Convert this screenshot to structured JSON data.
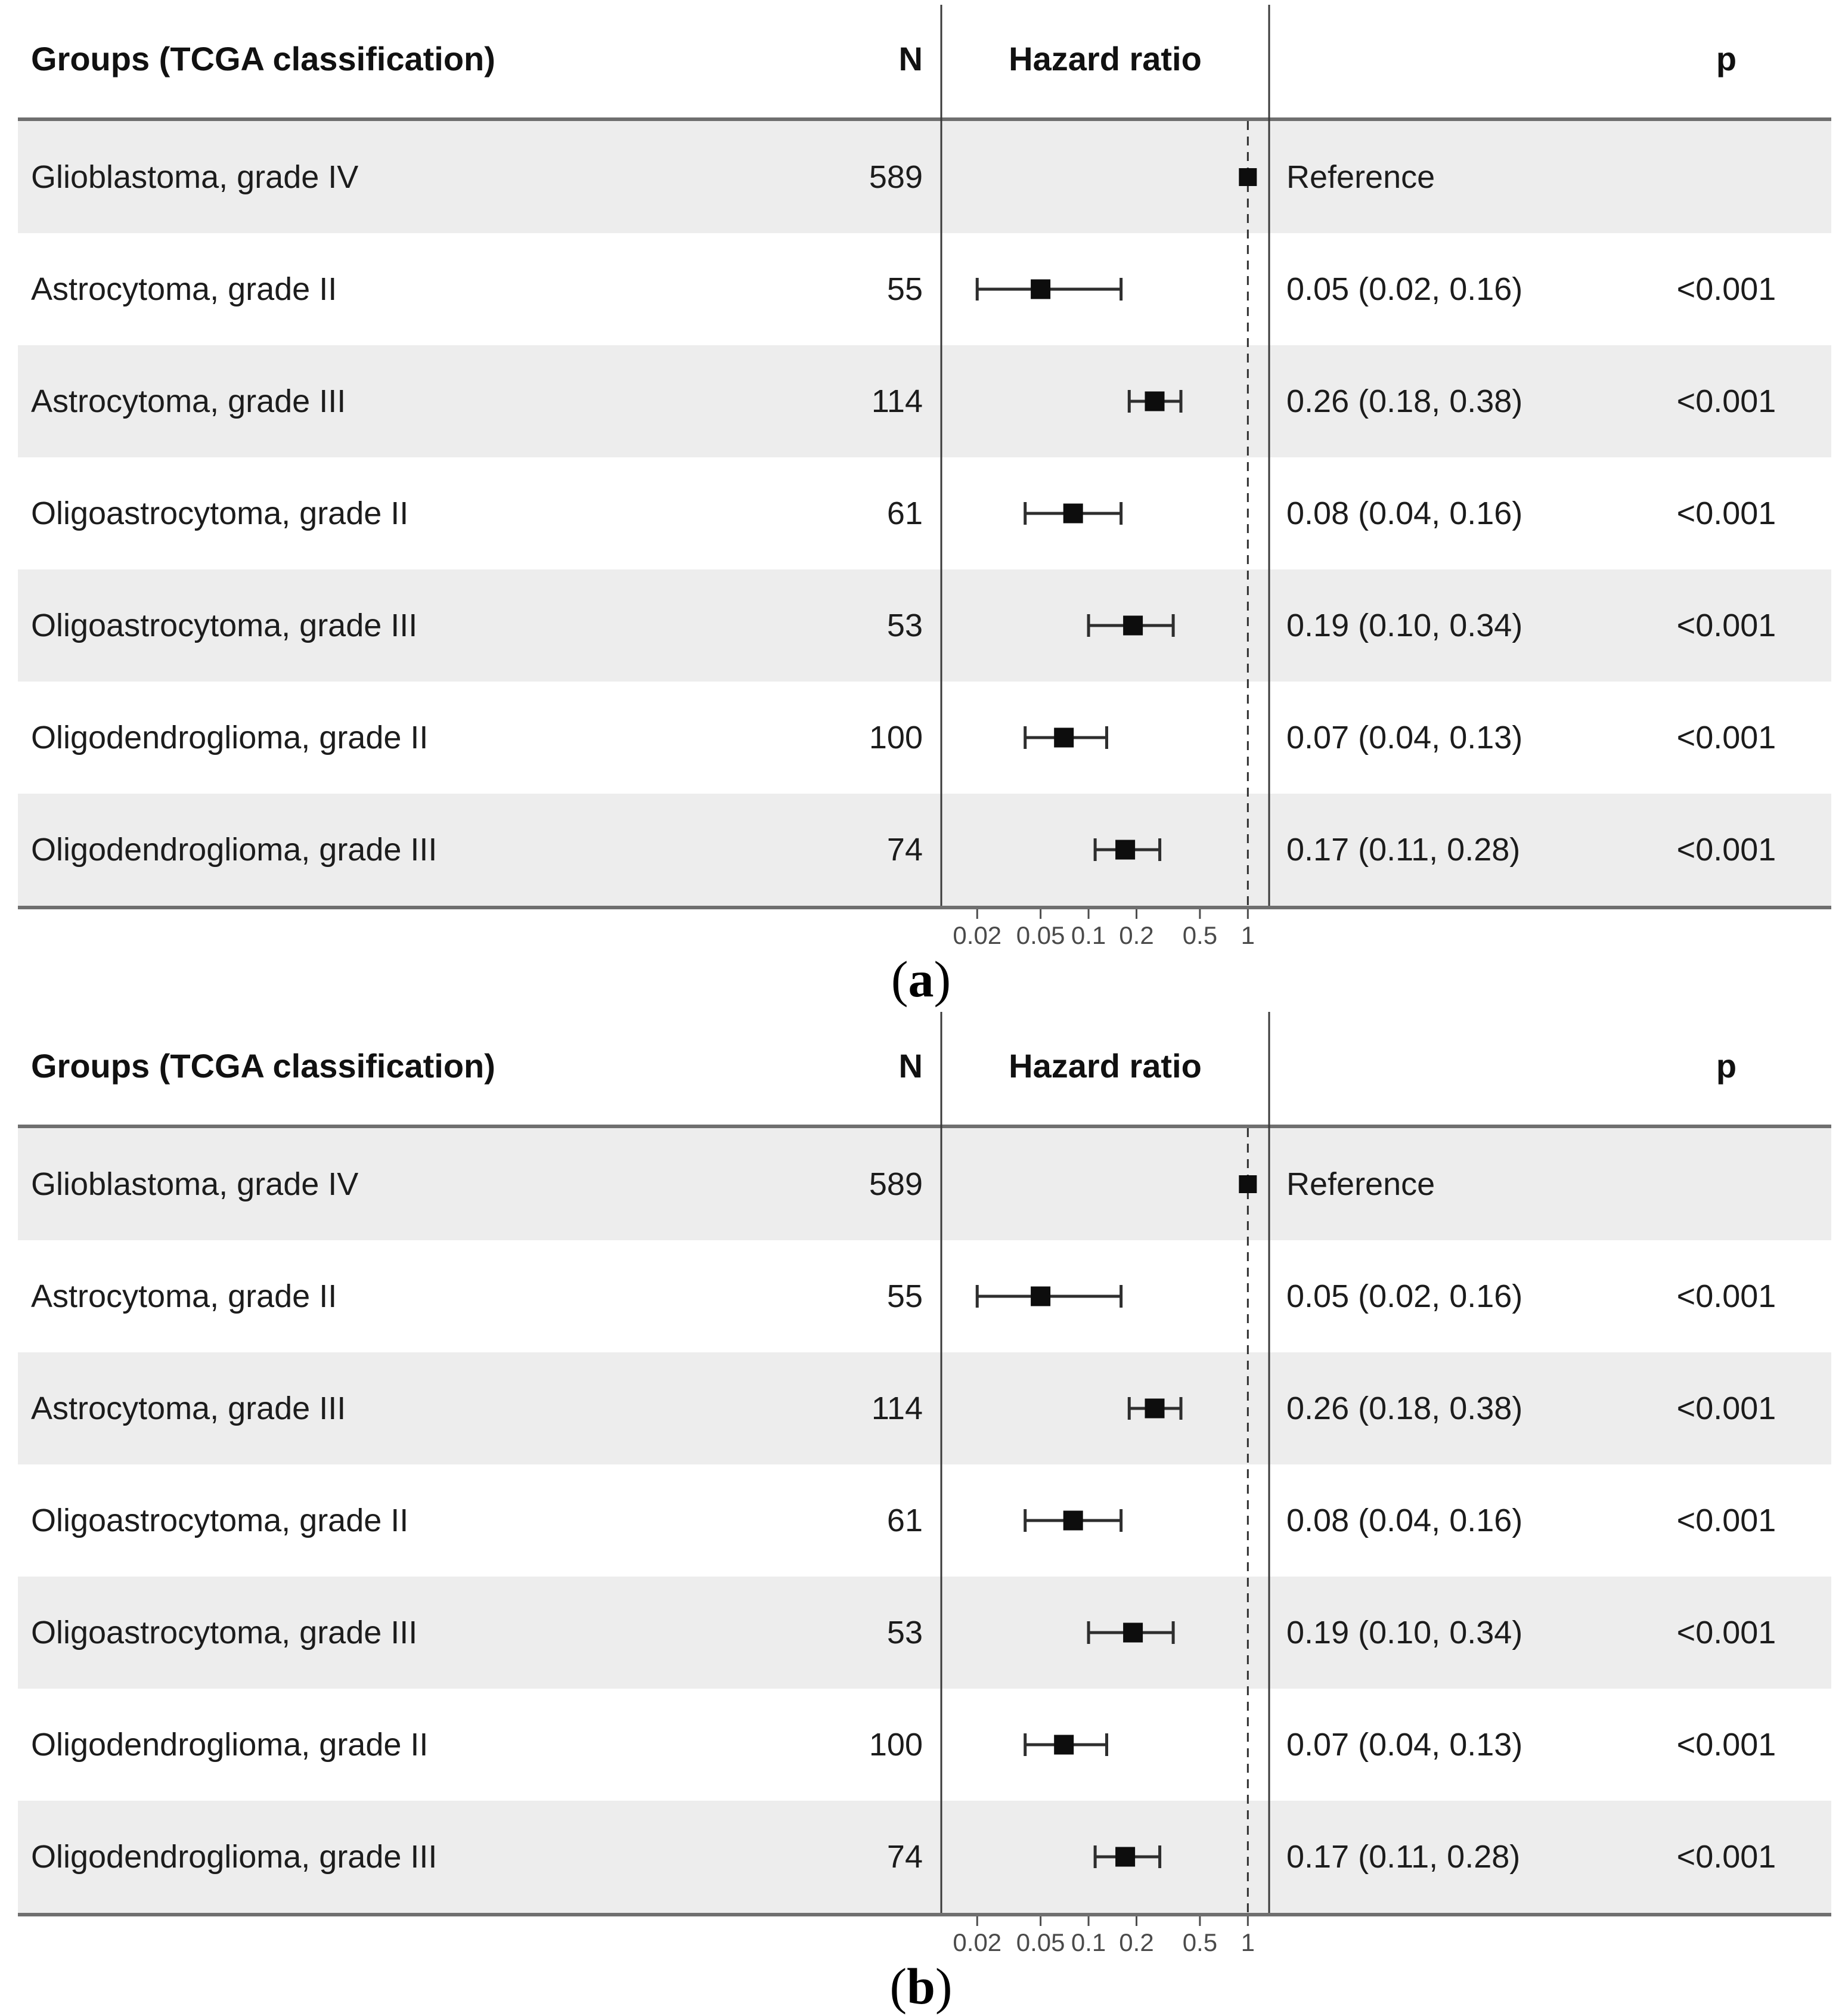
{
  "colors": {
    "row_shade": "#ededed",
    "table_border": "#6f6f6f",
    "plot_line": "#3a3a3a",
    "marker": "#0d0d0d",
    "tick_label": "#4a4a4a"
  },
  "panels": [
    {
      "caption": {
        "open": "(",
        "letter": "a",
        "close": ")"
      },
      "header": {
        "group": "Groups (TCGA classification)",
        "n": "N",
        "hazard": "Hazard ratio",
        "p": "p"
      },
      "axis": {
        "scale": "log",
        "min": 0.0119,
        "max": 1.36,
        "ref_line": 1,
        "ticks": [
          "0.02",
          "0.05",
          "0.1",
          "0.2",
          "0.5",
          "1"
        ]
      },
      "rows": [
        {
          "group": "Glioblastoma, grade IV",
          "n": "589",
          "hr_text": "Reference",
          "p": "",
          "hr": 1,
          "lo": null,
          "hi": null
        },
        {
          "group": "Astrocytoma, grade II",
          "n": "55",
          "hr_text": "0.05 (0.02, 0.16)",
          "p": "<0.001",
          "hr": 0.05,
          "lo": 0.02,
          "hi": 0.16
        },
        {
          "group": "Astrocytoma, grade III",
          "n": "114",
          "hr_text": "0.26 (0.18, 0.38)",
          "p": "<0.001",
          "hr": 0.26,
          "lo": 0.18,
          "hi": 0.38
        },
        {
          "group": "Oligoastrocytoma, grade II",
          "n": "61",
          "hr_text": "0.08 (0.04, 0.16)",
          "p": "<0.001",
          "hr": 0.08,
          "lo": 0.04,
          "hi": 0.16
        },
        {
          "group": "Oligoastrocytoma, grade III",
          "n": "53",
          "hr_text": "0.19 (0.10, 0.34)",
          "p": "<0.001",
          "hr": 0.19,
          "lo": 0.1,
          "hi": 0.34
        },
        {
          "group": "Oligodendroglioma, grade II",
          "n": "100",
          "hr_text": "0.07 (0.04, 0.13)",
          "p": "<0.001",
          "hr": 0.07,
          "lo": 0.04,
          "hi": 0.13
        },
        {
          "group": "Oligodendroglioma, grade III",
          "n": "74",
          "hr_text": "0.17 (0.11, 0.28)",
          "p": "<0.001",
          "hr": 0.17,
          "lo": 0.11,
          "hi": 0.28
        }
      ]
    },
    {
      "caption": {
        "open": "(",
        "letter": "b",
        "close": ")"
      },
      "header": {
        "group": "Groups (TCGA classification)",
        "n": "N",
        "hazard": "Hazard ratio",
        "p": "p"
      },
      "axis": {
        "scale": "log",
        "min": 0.0119,
        "max": 1.36,
        "ref_line": 1,
        "ticks": [
          "0.02",
          "0.05",
          "0.1",
          "0.2",
          "0.5",
          "1"
        ]
      },
      "rows": [
        {
          "group": "Glioblastoma, grade IV",
          "n": "589",
          "hr_text": "Reference",
          "p": "",
          "hr": 1,
          "lo": null,
          "hi": null
        },
        {
          "group": "Astrocytoma, grade II",
          "n": "55",
          "hr_text": "0.05 (0.02, 0.16)",
          "p": "<0.001",
          "hr": 0.05,
          "lo": 0.02,
          "hi": 0.16
        },
        {
          "group": "Astrocytoma, grade III",
          "n": "114",
          "hr_text": "0.26 (0.18, 0.38)",
          "p": "<0.001",
          "hr": 0.26,
          "lo": 0.18,
          "hi": 0.38
        },
        {
          "group": "Oligoastrocytoma, grade II",
          "n": "61",
          "hr_text": "0.08 (0.04, 0.16)",
          "p": "<0.001",
          "hr": 0.08,
          "lo": 0.04,
          "hi": 0.16
        },
        {
          "group": "Oligoastrocytoma, grade III",
          "n": "53",
          "hr_text": "0.19 (0.10, 0.34)",
          "p": "<0.001",
          "hr": 0.19,
          "lo": 0.1,
          "hi": 0.34
        },
        {
          "group": "Oligodendroglioma, grade II",
          "n": "100",
          "hr_text": "0.07 (0.04, 0.13)",
          "p": "<0.001",
          "hr": 0.07,
          "lo": 0.04,
          "hi": 0.13
        },
        {
          "group": "Oligodendroglioma, grade III",
          "n": "74",
          "hr_text": "0.17 (0.11, 0.28)",
          "p": "<0.001",
          "hr": 0.17,
          "lo": 0.11,
          "hi": 0.28
        }
      ]
    }
  ],
  "chart_data": [
    {
      "type": "scatter",
      "variant": "forest",
      "panel_label": "(a)",
      "title": "",
      "xlabel": "Hazard ratio",
      "categories": [
        "Glioblastoma, grade IV",
        "Astrocytoma, grade II",
        "Astrocytoma, grade III",
        "Oligoastrocytoma, grade II",
        "Oligoastrocytoma, grade III",
        "Oligodendroglioma, grade II",
        "Oligodendroglioma, grade III"
      ],
      "n": [
        589,
        55,
        114,
        61,
        53,
        100,
        74
      ],
      "series": [
        {
          "name": "Hazard ratio",
          "values": [
            1,
            0.05,
            0.26,
            0.08,
            0.19,
            0.07,
            0.17
          ],
          "ci_low": [
            null,
            0.02,
            0.18,
            0.04,
            0.1,
            0.04,
            0.11
          ],
          "ci_high": [
            null,
            0.16,
            0.38,
            0.16,
            0.34,
            0.13,
            0.28
          ]
        }
      ],
      "labels": [
        "Reference",
        "0.05 (0.02, 0.16)",
        "0.26 (0.18, 0.38)",
        "0.08 (0.04, 0.16)",
        "0.19 (0.10, 0.34)",
        "0.07 (0.04, 0.13)",
        "0.17 (0.11, 0.28)"
      ],
      "p_values": [
        "",
        "<0.001",
        "<0.001",
        "<0.001",
        "<0.001",
        "<0.001",
        "<0.001"
      ],
      "xscale": "log",
      "xticks": [
        0.02,
        0.05,
        0.1,
        0.2,
        0.5,
        1
      ],
      "xlim": [
        0.0119,
        1.36
      ],
      "reference_line": 1,
      "grid": false,
      "legend": false
    },
    {
      "type": "scatter",
      "variant": "forest",
      "panel_label": "(b)",
      "title": "",
      "xlabel": "Hazard ratio",
      "categories": [
        "Glioblastoma, grade IV",
        "Astrocytoma, grade II",
        "Astrocytoma, grade III",
        "Oligoastrocytoma, grade II",
        "Oligoastrocytoma, grade III",
        "Oligodendroglioma, grade II",
        "Oligodendroglioma, grade III"
      ],
      "n": [
        589,
        55,
        114,
        61,
        53,
        100,
        74
      ],
      "series": [
        {
          "name": "Hazard ratio",
          "values": [
            1,
            0.05,
            0.26,
            0.08,
            0.19,
            0.07,
            0.17
          ],
          "ci_low": [
            null,
            0.02,
            0.18,
            0.04,
            0.1,
            0.04,
            0.11
          ],
          "ci_high": [
            null,
            0.16,
            0.38,
            0.16,
            0.34,
            0.13,
            0.28
          ]
        }
      ],
      "labels": [
        "Reference",
        "0.05 (0.02, 0.16)",
        "0.26 (0.18, 0.38)",
        "0.08 (0.04, 0.16)",
        "0.19 (0.10, 0.34)",
        "0.07 (0.04, 0.13)",
        "0.17 (0.11, 0.28)"
      ],
      "p_values": [
        "",
        "<0.001",
        "<0.001",
        "<0.001",
        "<0.001",
        "<0.001",
        "<0.001"
      ],
      "xscale": "log",
      "xticks": [
        0.02,
        0.05,
        0.1,
        0.2,
        0.5,
        1
      ],
      "xlim": [
        0.0119,
        1.36
      ],
      "reference_line": 1,
      "grid": false,
      "legend": false
    }
  ]
}
